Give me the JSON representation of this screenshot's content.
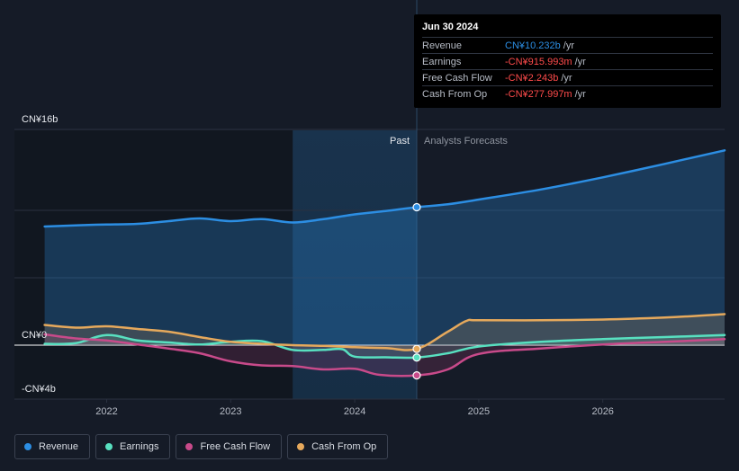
{
  "chart_data": {
    "type": "area",
    "title": "",
    "y_axis": {
      "unit": "CN¥ billions",
      "range": [
        -4,
        16
      ],
      "labels": [
        {
          "value": 16,
          "text": "CN¥16b"
        },
        {
          "value": 0,
          "text": "CN¥0"
        },
        {
          "value": -4,
          "text": "-CN¥4b"
        }
      ]
    },
    "x_axis": {
      "range": [
        2021.5,
        2027.0
      ],
      "ticks": [
        {
          "value": 2022,
          "text": "2022"
        },
        {
          "value": 2023,
          "text": "2023"
        },
        {
          "value": 2024,
          "text": "2024"
        },
        {
          "value": 2025,
          "text": "2025"
        },
        {
          "value": 2026,
          "text": "2026"
        }
      ]
    },
    "divider_x": 2024.5,
    "shaded_band": [
      2023.5,
      2024.5
    ],
    "region_labels": {
      "past": "Past",
      "forecast": "Analysts Forecasts"
    },
    "series": [
      {
        "name": "Revenue",
        "color": "#2c8ee3",
        "x": [
          2021.5,
          2021.8,
          2022.0,
          2022.25,
          2022.5,
          2022.75,
          2023.0,
          2023.25,
          2023.5,
          2023.75,
          2024.0,
          2024.25,
          2024.5,
          2024.75,
          2025.0,
          2025.5,
          2026.0,
          2026.5,
          2027.0
        ],
        "values": [
          8.8,
          8.9,
          8.95,
          9.0,
          9.2,
          9.4,
          9.2,
          9.35,
          9.1,
          9.35,
          9.7,
          9.95,
          10.232,
          10.45,
          10.8,
          11.55,
          12.45,
          13.45,
          14.45
        ]
      },
      {
        "name": "Earnings",
        "color": "#58e0c0",
        "x": [
          2021.5,
          2021.75,
          2022.0,
          2022.25,
          2022.5,
          2022.75,
          2023.0,
          2023.25,
          2023.5,
          2023.75,
          2023.9,
          2024.0,
          2024.25,
          2024.5,
          2024.75,
          2025.0,
          2025.5,
          2026.0,
          2026.5,
          2027.0
        ],
        "values": [
          0.1,
          0.15,
          0.75,
          0.35,
          0.2,
          0.05,
          0.25,
          0.3,
          -0.35,
          -0.35,
          -0.3,
          -0.85,
          -0.9,
          -0.916,
          -0.6,
          -0.1,
          0.25,
          0.45,
          0.6,
          0.75
        ]
      },
      {
        "name": "Free Cash Flow",
        "color": "#c84a8a",
        "x": [
          2021.5,
          2021.75,
          2022.0,
          2022.25,
          2022.5,
          2022.75,
          2023.0,
          2023.25,
          2023.5,
          2023.75,
          2024.0,
          2024.2,
          2024.5,
          2024.75,
          2025.0,
          2025.5,
          2026.0,
          2026.5,
          2027.0
        ],
        "values": [
          0.8,
          0.5,
          0.35,
          0.05,
          -0.25,
          -0.6,
          -1.2,
          -1.5,
          -1.55,
          -1.8,
          -1.75,
          -2.2,
          -2.243,
          -1.8,
          -0.65,
          -0.25,
          0.05,
          0.25,
          0.45
        ]
      },
      {
        "name": "Cash From Op",
        "color": "#e6a95c",
        "x": [
          2021.5,
          2021.75,
          2022.0,
          2022.25,
          2022.5,
          2022.75,
          2023.0,
          2023.25,
          2023.5,
          2023.75,
          2024.0,
          2024.25,
          2024.5,
          2024.75,
          2024.9,
          2025.0,
          2025.5,
          2026.0,
          2026.5,
          2027.0
        ],
        "values": [
          1.5,
          1.3,
          1.4,
          1.2,
          1.0,
          0.6,
          0.25,
          0.1,
          0.0,
          -0.05,
          -0.15,
          -0.22,
          -0.278,
          1.0,
          1.8,
          1.85,
          1.85,
          1.9,
          2.05,
          2.3
        ]
      }
    ],
    "highlight_x": 2024.5
  },
  "tooltip": {
    "date": "Jun 30 2024",
    "rows": [
      {
        "label": "Revenue",
        "value": "CN¥10.232b",
        "unit": "/yr",
        "color": "#2c8ee3"
      },
      {
        "label": "Earnings",
        "value": "-CN¥915.993m",
        "unit": "/yr",
        "color": "#ff4b4b"
      },
      {
        "label": "Free Cash Flow",
        "value": "-CN¥2.243b",
        "unit": "/yr",
        "color": "#ff4b4b"
      },
      {
        "label": "Cash From Op",
        "value": "-CN¥277.997m",
        "unit": "/yr",
        "color": "#ff4b4b"
      }
    ]
  },
  "legend": [
    {
      "label": "Revenue",
      "color": "#2c8ee3"
    },
    {
      "label": "Earnings",
      "color": "#58e0c0"
    },
    {
      "label": "Free Cash Flow",
      "color": "#c84a8a"
    },
    {
      "label": "Cash From Op",
      "color": "#e6a95c"
    }
  ]
}
